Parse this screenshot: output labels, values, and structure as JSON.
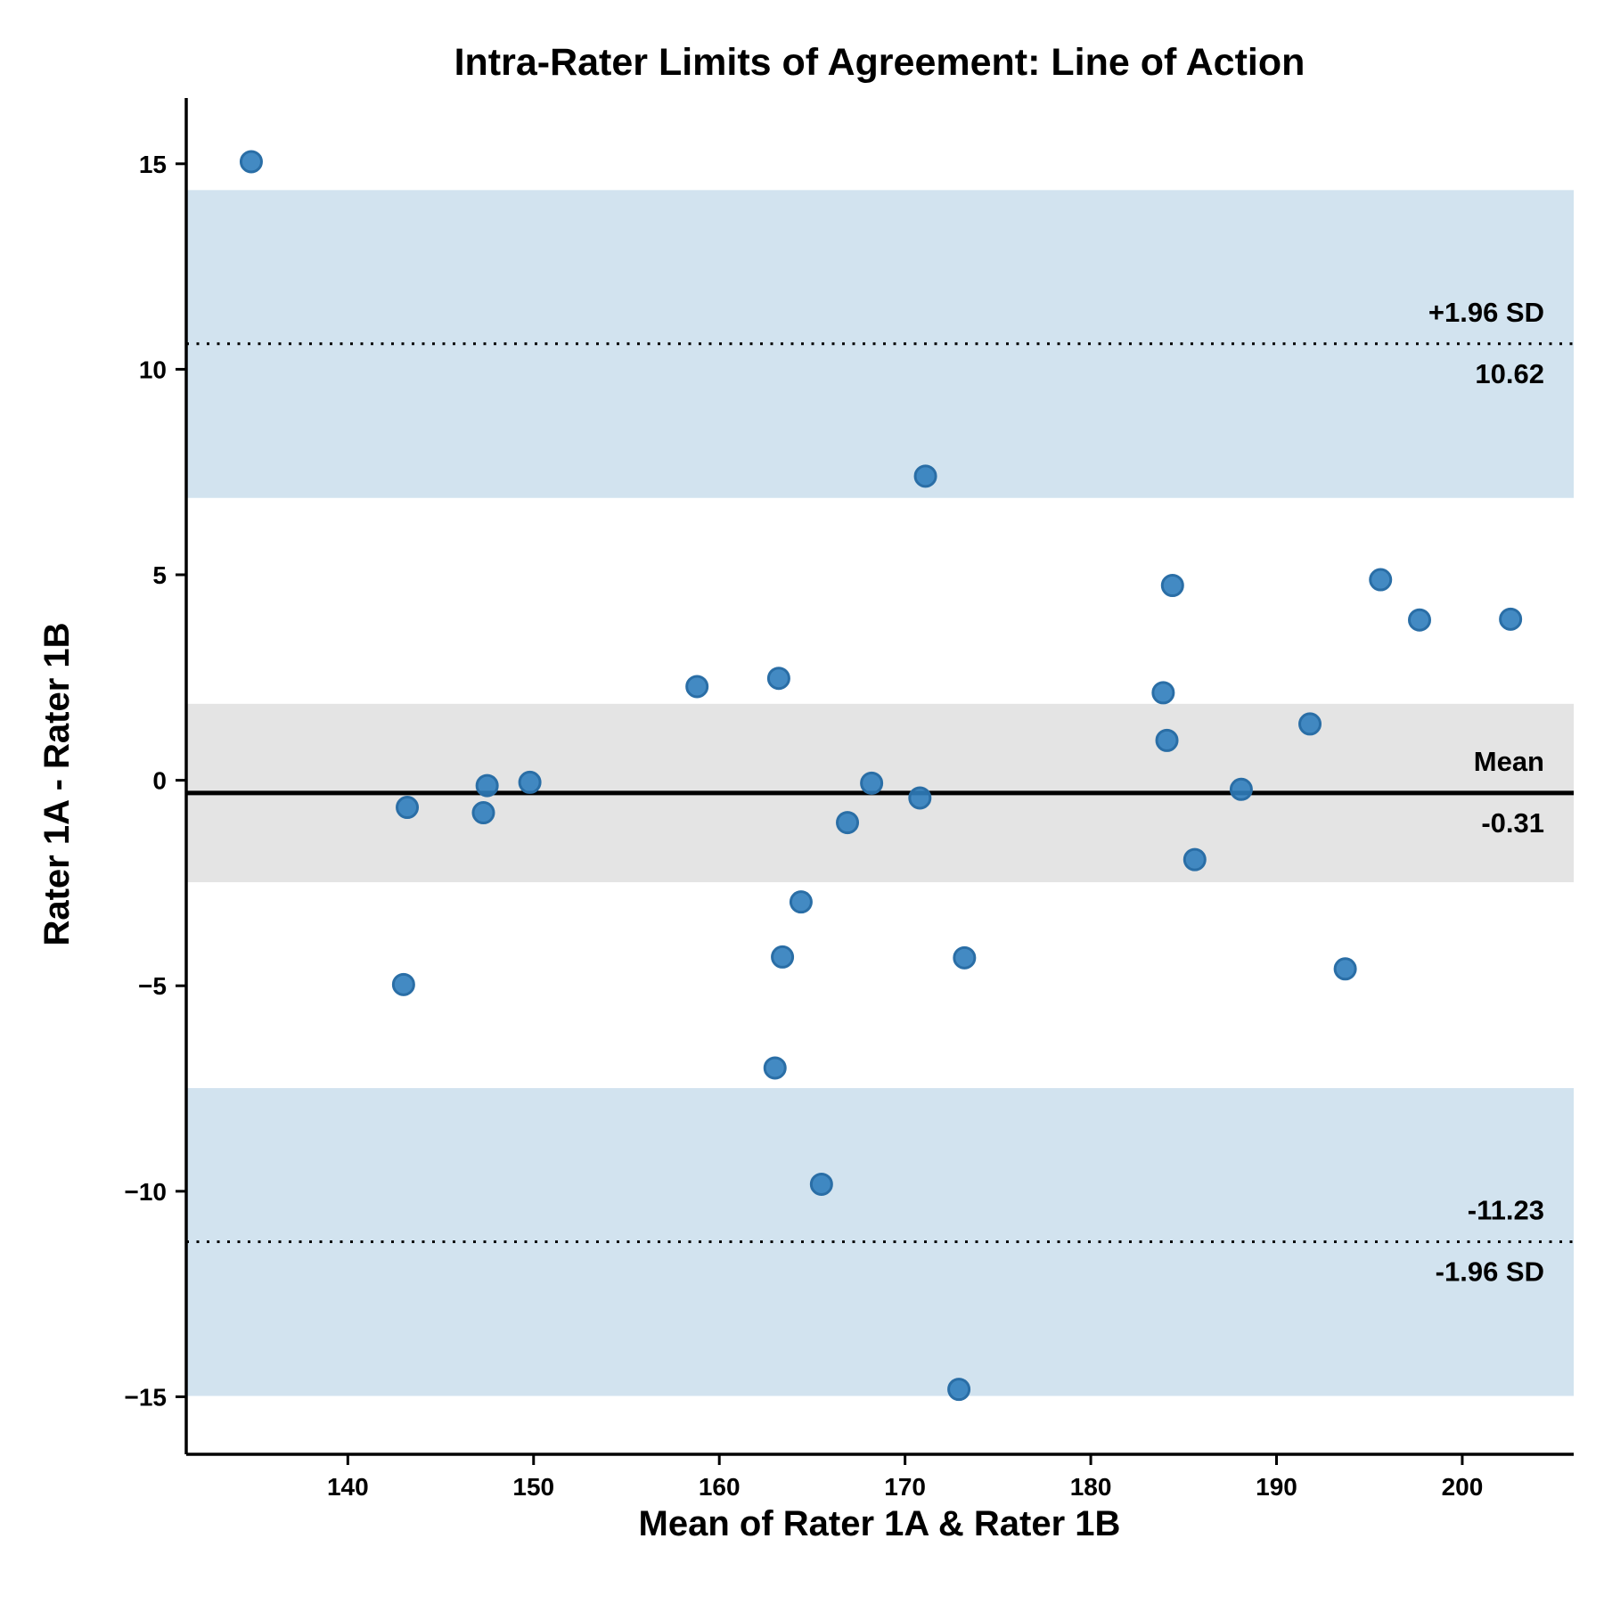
{
  "chart_data": {
    "type": "scatter",
    "title": "Intra-Rater Limits of Agreement: Line of Action",
    "xlabel": "Mean of Rater 1A & Rater 1B",
    "ylabel": "Rater 1A - Rater 1B",
    "xlim": [
      131.3,
      206.0
    ],
    "ylim": [
      -16.4,
      16.6
    ],
    "xticks": [
      140,
      150,
      160,
      170,
      180,
      190,
      200
    ],
    "xtick_labels": [
      "140",
      "150",
      "160",
      "170",
      "180",
      "190",
      "200"
    ],
    "yticks": [
      15,
      10,
      5,
      0,
      -5,
      -10,
      -15
    ],
    "ytick_labels": [
      "15",
      "10",
      "5",
      "0",
      "−5",
      "−10",
      "−15"
    ],
    "grid": false,
    "point_color": "#2f7dbd",
    "points": [
      {
        "x": 134.8,
        "y": 15.05
      },
      {
        "x": 143.0,
        "y": -4.97
      },
      {
        "x": 143.2,
        "y": -0.66
      },
      {
        "x": 147.3,
        "y": -0.79
      },
      {
        "x": 147.5,
        "y": -0.13
      },
      {
        "x": 149.8,
        "y": -0.05
      },
      {
        "x": 158.8,
        "y": 2.28
      },
      {
        "x": 163.0,
        "y": -7.0
      },
      {
        "x": 163.2,
        "y": 2.48
      },
      {
        "x": 163.4,
        "y": -4.3
      },
      {
        "x": 164.4,
        "y": -2.96
      },
      {
        "x": 165.5,
        "y": -9.83
      },
      {
        "x": 166.9,
        "y": -1.03
      },
      {
        "x": 168.2,
        "y": -0.07
      },
      {
        "x": 170.8,
        "y": -0.43
      },
      {
        "x": 171.1,
        "y": 7.4
      },
      {
        "x": 172.9,
        "y": -14.82
      },
      {
        "x": 173.2,
        "y": -4.32
      },
      {
        "x": 183.9,
        "y": 2.13
      },
      {
        "x": 184.1,
        "y": 0.97
      },
      {
        "x": 184.4,
        "y": 4.74
      },
      {
        "x": 185.6,
        "y": -1.93
      },
      {
        "x": 188.1,
        "y": -0.22
      },
      {
        "x": 191.8,
        "y": 1.37
      },
      {
        "x": 193.7,
        "y": -4.59
      },
      {
        "x": 195.6,
        "y": 4.88
      },
      {
        "x": 197.7,
        "y": 3.9
      },
      {
        "x": 202.6,
        "y": 3.92
      }
    ],
    "mean_line": {
      "value": -0.31,
      "label": "Mean",
      "value_label": "-0.31",
      "color": "#000000"
    },
    "upper_loa": {
      "value": 10.62,
      "label": "+1.96 SD",
      "value_label": "10.62",
      "style": "dotted"
    },
    "lower_loa": {
      "value": -11.23,
      "label": "-1.96 SD",
      "value_label": "-11.23",
      "style": "dotted"
    },
    "bands": [
      {
        "name": "upper-loa-ci",
        "y0": 6.87,
        "y1": 14.36,
        "color": "#d2e3ef"
      },
      {
        "name": "mean-ci",
        "y0": -2.48,
        "y1": 1.86,
        "color": "#e4e4e4"
      },
      {
        "name": "lower-loa-ci",
        "y0": -14.98,
        "y1": -7.49,
        "color": "#d2e3ef"
      }
    ]
  }
}
